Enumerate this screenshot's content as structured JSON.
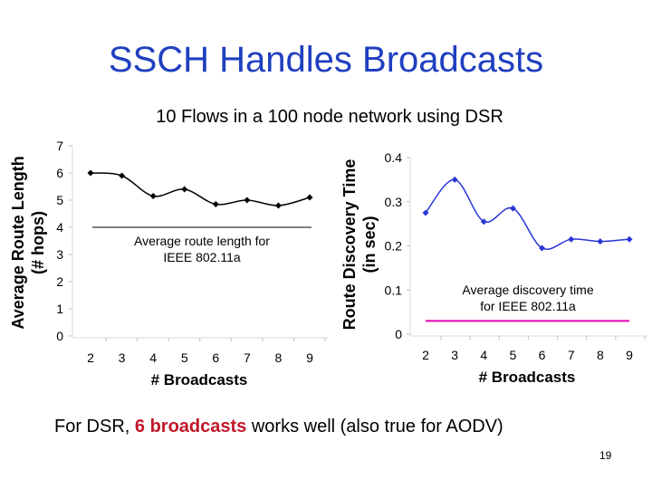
{
  "slide": {
    "title": "SSCH Handles Broadcasts",
    "subtitle": "10 Flows in a 100 node network using DSR",
    "footnote_prefix": "For DSR, ",
    "footnote_highlight": "6 broadcasts",
    "footnote_suffix": " works well (also true for AODV)",
    "page_number": "19",
    "highlight_color": "#c0182a",
    "title_color": "#1f3fbf"
  },
  "chart_data": [
    {
      "type": "line",
      "x": [
        2,
        3,
        4,
        5,
        6,
        7,
        8,
        9
      ],
      "xlabel": "# Broadcasts",
      "ylabel_line1": "Average Route Length",
      "ylabel_line2": "(# hops)",
      "ylim": [
        0,
        7
      ],
      "yticks": [
        0,
        1,
        2,
        3,
        4,
        5,
        6,
        7
      ],
      "series": [
        {
          "values": [
            6.0,
            5.9,
            5.15,
            5.4,
            4.85,
            5.0,
            4.8,
            5.1
          ],
          "color": "#000000",
          "marker": "diamond"
        }
      ],
      "reference": {
        "value": 4.0,
        "color": "#000000",
        "label_line1": "Average route length for",
        "label_line2": "IEEE 802.11a"
      }
    },
    {
      "type": "line",
      "x": [
        2,
        3,
        4,
        5,
        6,
        7,
        8,
        9
      ],
      "xlabel": "# Broadcasts",
      "ylabel_line1": "Route Discovery Time",
      "ylabel_line2": "(in sec)",
      "ylim": [
        0,
        0.4
      ],
      "yticks": [
        0,
        0.1,
        0.2,
        0.3,
        0.4
      ],
      "series": [
        {
          "values": [
            0.275,
            0.35,
            0.255,
            0.285,
            0.195,
            0.215,
            0.21,
            0.215
          ],
          "color": "#2a35d6",
          "marker": "diamond"
        }
      ],
      "reference": {
        "value": 0.03,
        "color": "#e000b0",
        "label_line1": "Average discovery time",
        "label_line2": "for IEEE 802.11a"
      }
    }
  ]
}
